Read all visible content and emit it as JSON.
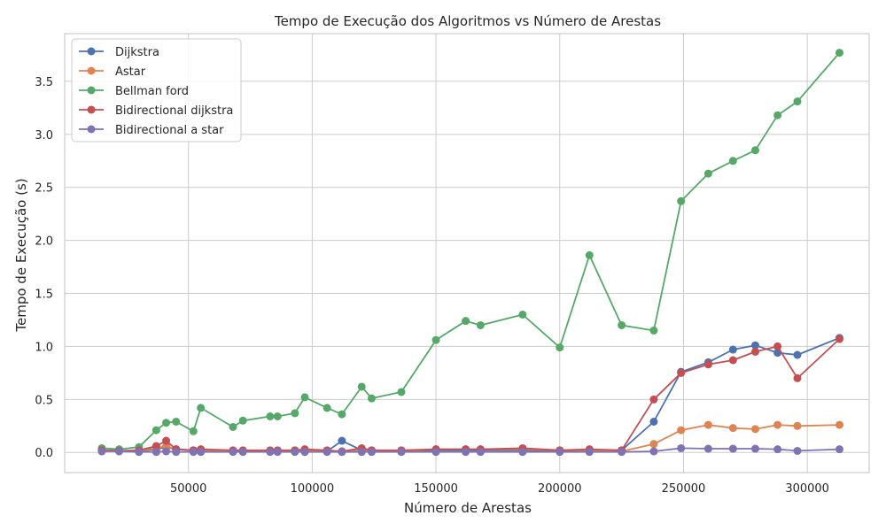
{
  "chart_data": {
    "type": "line",
    "title": "Tempo de Execução dos Algoritmos vs Número de Arestas",
    "xlabel": "Número de Arestas",
    "ylabel": "Tempo de Execução (s)",
    "xlim": [
      0,
      325000
    ],
    "ylim": [
      -0.19,
      3.95
    ],
    "xticks": [
      50000,
      100000,
      150000,
      200000,
      250000,
      300000
    ],
    "yticks": [
      0.0,
      0.5,
      1.0,
      1.5,
      2.0,
      2.5,
      3.0,
      3.5
    ],
    "xtick_labels": [
      "50000",
      "100000",
      "150000",
      "200000",
      "250000",
      "300000"
    ],
    "ytick_labels": [
      "0.0",
      "0.5",
      "1.0",
      "1.5",
      "2.0",
      "2.5",
      "3.0",
      "3.5"
    ],
    "grid": true,
    "legend_position": "top-left",
    "x": [
      15000,
      22000,
      30000,
      37000,
      41000,
      45000,
      52000,
      55000,
      68000,
      72000,
      83000,
      86000,
      93000,
      97000,
      106000,
      112000,
      120000,
      124000,
      136000,
      150000,
      162000,
      168000,
      185000,
      200000,
      212000,
      225000,
      238000,
      249000,
      260000,
      270000,
      279000,
      288000,
      296000,
      313000
    ],
    "series": [
      {
        "name": "Dijkstra",
        "color": "#4c72b0",
        "values": [
          0.02,
          0.015,
          0.01,
          0.03,
          0.05,
          0.03,
          0.02,
          0.02,
          0.01,
          0.01,
          0.01,
          0.01,
          0.01,
          0.02,
          0.01,
          0.11,
          0.02,
          0.01,
          0.01,
          0.02,
          0.02,
          0.02,
          0.02,
          0.01,
          0.02,
          0.02,
          0.29,
          0.76,
          0.85,
          0.97,
          1.01,
          0.94,
          0.92,
          1.08
        ]
      },
      {
        "name": "Astar",
        "color": "#dd8452",
        "values": [
          0.02,
          0.015,
          0.015,
          0.04,
          0.06,
          0.03,
          0.02,
          0.02,
          0.01,
          0.01,
          0.01,
          0.01,
          0.02,
          0.02,
          0.01,
          0.01,
          0.02,
          0.02,
          0.01,
          0.03,
          0.03,
          0.03,
          0.03,
          0.02,
          0.02,
          0.01,
          0.08,
          0.21,
          0.26,
          0.23,
          0.22,
          0.26,
          0.25,
          0.26
        ]
      },
      {
        "name": "Bellman ford",
        "color": "#55a868",
        "values": [
          0.04,
          0.03,
          0.05,
          0.21,
          0.28,
          0.29,
          0.2,
          0.42,
          0.24,
          0.3,
          0.34,
          0.34,
          0.37,
          0.52,
          0.42,
          0.36,
          0.62,
          0.51,
          0.57,
          1.06,
          1.24,
          1.2,
          1.3,
          0.99,
          1.86,
          1.2,
          1.15,
          2.37,
          2.63,
          2.75,
          2.85,
          3.18,
          3.31,
          3.77
        ]
      },
      {
        "name": "Bidirectional dijkstra",
        "color": "#c44e52",
        "values": [
          0.02,
          0.015,
          0.02,
          0.06,
          0.11,
          0.03,
          0.02,
          0.03,
          0.02,
          0.02,
          0.02,
          0.02,
          0.02,
          0.03,
          0.02,
          0.01,
          0.04,
          0.02,
          0.02,
          0.03,
          0.03,
          0.03,
          0.04,
          0.02,
          0.03,
          0.02,
          0.5,
          0.75,
          0.83,
          0.87,
          0.95,
          1.0,
          0.7,
          1.07
        ]
      },
      {
        "name": "Bidirectional a star",
        "color": "#8172b3",
        "values": [
          0.01,
          0.01,
          0.005,
          0.005,
          0.01,
          0.005,
          0.005,
          0.005,
          0.005,
          0.005,
          0.005,
          0.005,
          0.005,
          0.005,
          0.005,
          0.005,
          0.005,
          0.005,
          0.005,
          0.005,
          0.005,
          0.005,
          0.005,
          0.005,
          0.005,
          0.005,
          0.01,
          0.04,
          0.035,
          0.035,
          0.035,
          0.03,
          0.015,
          0.03
        ]
      }
    ]
  }
}
